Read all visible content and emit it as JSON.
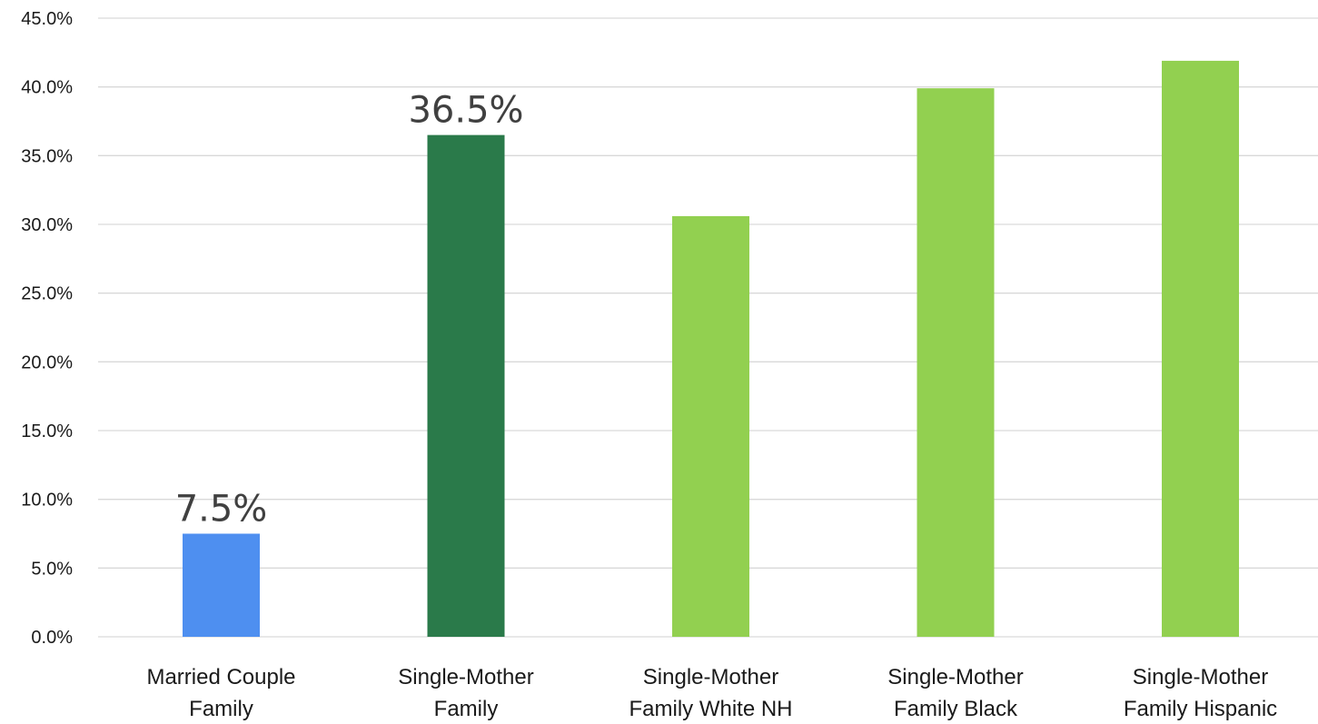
{
  "chart_data": {
    "type": "bar",
    "categories": [
      [
        "Married Couple",
        "Family"
      ],
      [
        "Single-Mother",
        "Family"
      ],
      [
        "Single-Mother",
        "Family White NH"
      ],
      [
        "Single-Mother",
        "Family Black"
      ],
      [
        "Single-Mother",
        "Family Hispanic"
      ]
    ],
    "values": [
      7.5,
      36.5,
      30.6,
      39.9,
      41.9
    ],
    "data_labels": [
      "7.5%",
      "36.5%",
      "",
      "",
      ""
    ],
    "colors": [
      "#4e8ff0",
      "#2a7a4a",
      "#92d050",
      "#92d050",
      "#92d050"
    ],
    "ylim": [
      0,
      45
    ],
    "yticks": [
      0,
      5,
      10,
      15,
      20,
      25,
      30,
      35,
      40,
      45
    ],
    "ytick_labels": [
      "0.0%",
      "5.0%",
      "10.0%",
      "15.0%",
      "20.0%",
      "25.0%",
      "30.0%",
      "35.0%",
      "40.0%",
      "45.0%"
    ],
    "grid": true,
    "legend": "none",
    "title": "",
    "xlabel": "",
    "ylabel": ""
  }
}
